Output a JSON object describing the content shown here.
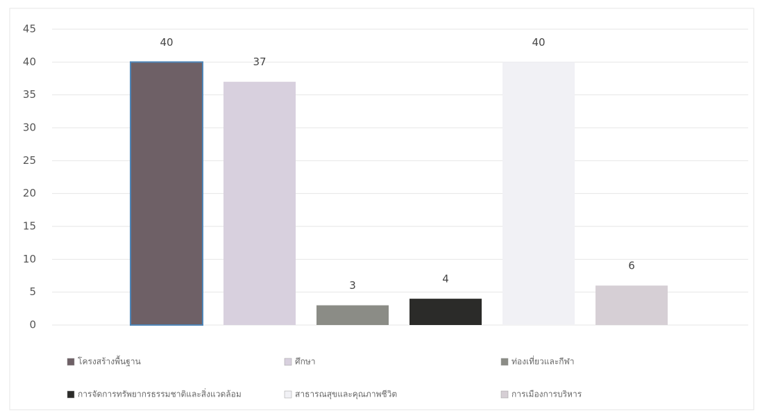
{
  "chart_data": {
    "type": "bar",
    "categories": [
      "โครงสร้างพื้นฐาน",
      "ศึกษา",
      "ท่องเที่ยวและกีฬา",
      "การจัดการทรัพยากรธรรมชาติและสิ่งแวดล้อม",
      "สาธารณสุขและคุณภาพชีวิต",
      "การเมืองการบริหาร"
    ],
    "values": [
      40,
      37,
      3,
      4,
      40,
      6
    ],
    "colors": [
      "#6e6066",
      "#d8d0de",
      "#8b8c86",
      "#2b2b29",
      "#f1f1f5",
      "#d6cfd5"
    ],
    "ylim": [
      0,
      45
    ],
    "yticks": [
      0,
      5,
      10,
      15,
      20,
      25,
      30,
      35,
      40,
      45
    ],
    "grid": true,
    "legend": "bottom"
  }
}
